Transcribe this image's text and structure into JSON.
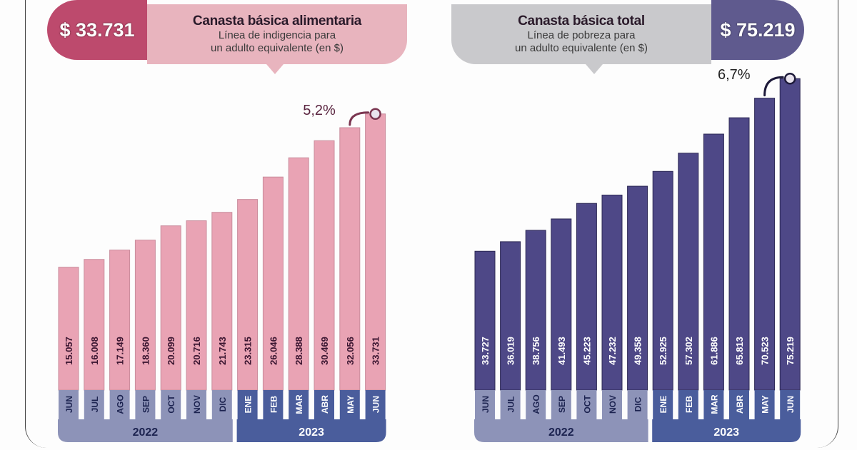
{
  "panels": [
    {
      "id": "food",
      "headline_value": "$ 33.731",
      "title": "Canasta básica alimentaria",
      "subtitle_line1": "Línea de indigencia para",
      "subtitle_line2": "un adulto equivalente (en $)",
      "change_label": "5,2%"
    },
    {
      "id": "total",
      "headline_value": "$ 75.219",
      "title": "Canasta básica total",
      "subtitle_line1": "Línea de pobreza para",
      "subtitle_line2": "un adulto equivalente (en $)",
      "change_label": "6,7%"
    }
  ],
  "colors": {
    "food_bar": "#e9a3b4",
    "food_accent": "#bd4a6d",
    "total_bar": "#4e4887",
    "total_accent": "#5f5a8e",
    "year_2022": "#8d93b8",
    "year_2023": "#4a5d9c"
  },
  "chart_data": [
    {
      "type": "bar",
      "title": "Canasta básica alimentaria",
      "subtitle": "Línea de indigencia para un adulto equivalente (en $)",
      "categories": [
        "JUN",
        "JUL",
        "AGO",
        "SEP",
        "OCT",
        "NOV",
        "DIC",
        "ENE",
        "FEB",
        "MAR",
        "ABR",
        "MAY",
        "JUN"
      ],
      "years": [
        {
          "label": "2022",
          "count": 7
        },
        {
          "label": "2023",
          "count": 6
        }
      ],
      "values": [
        15057,
        16008,
        17149,
        18360,
        20099,
        20716,
        21743,
        23315,
        26046,
        28388,
        30469,
        32056,
        33731
      ],
      "value_labels": [
        "15.057",
        "16.008",
        "17.149",
        "18.360",
        "20.099",
        "20.716",
        "21.743",
        "23.315",
        "26.046",
        "28.388",
        "30.469",
        "32.056",
        "33.731"
      ],
      "annotation": "5,2%",
      "ylim": [
        0,
        35000
      ],
      "grid": false
    },
    {
      "type": "bar",
      "title": "Canasta básica total",
      "subtitle": "Línea de pobreza para un adulto equivalente (en $)",
      "categories": [
        "JUN",
        "JUL",
        "AGO",
        "SEP",
        "OCT",
        "NOV",
        "DIC",
        "ENE",
        "FEB",
        "MAR",
        "ABR",
        "MAY",
        "JUN"
      ],
      "years": [
        {
          "label": "2022",
          "count": 7
        },
        {
          "label": "2023",
          "count": 6
        }
      ],
      "values": [
        33727,
        36019,
        38756,
        41493,
        45223,
        47232,
        49358,
        52925,
        57302,
        61886,
        65813,
        70523,
        75219
      ],
      "value_labels": [
        "33.727",
        "36.019",
        "38.756",
        "41.493",
        "45.223",
        "47.232",
        "49.358",
        "52.925",
        "57.302",
        "61.886",
        "65.813",
        "70.523",
        "75.219"
      ],
      "annotation": "6,7%",
      "ylim": [
        0,
        80000
      ],
      "grid": false
    }
  ]
}
